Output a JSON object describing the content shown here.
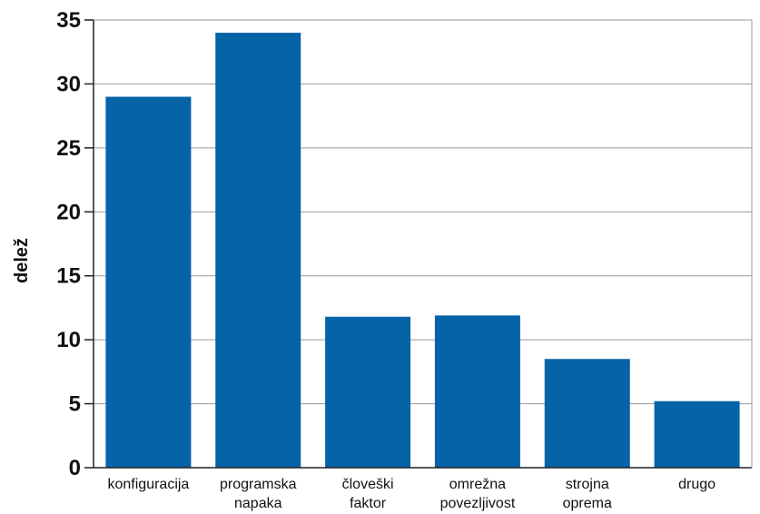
{
  "chart_data": {
    "type": "bar",
    "title": "",
    "xlabel": "",
    "ylabel": "delež",
    "categories": [
      [
        "konfiguracija"
      ],
      [
        "programska",
        "napaka"
      ],
      [
        "človeški",
        "faktor"
      ],
      [
        "omrežna",
        "povezljivost"
      ],
      [
        "strojna",
        "oprema"
      ],
      [
        "drugo"
      ]
    ],
    "values": [
      29,
      34,
      11.8,
      11.9,
      8.5,
      5.2
    ],
    "ylim": [
      0,
      35
    ],
    "yticks": [
      0,
      5,
      10,
      15,
      20,
      25,
      30,
      35
    ],
    "grid": true,
    "legend": "none",
    "colors": {
      "bar": "#0563a8",
      "grid": "#9a9a9a",
      "axis": "#222222"
    }
  }
}
